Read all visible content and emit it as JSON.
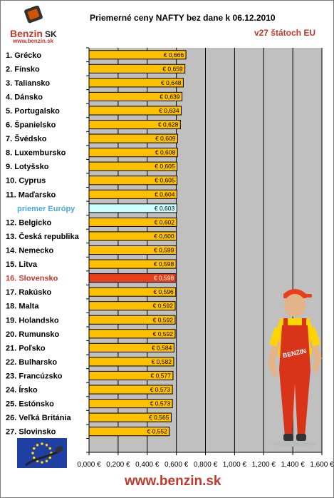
{
  "header": {
    "title": "Priemerné ceny NAFTY bez dane k 06.12.2010",
    "subtitle": "v27 štátoch EU",
    "logo_text": "Benzin",
    "logo_suffix": "SK",
    "logo_url": "www.benzin.sk"
  },
  "footer": {
    "url": "www.benzin.sk"
  },
  "colors": {
    "bar": "#ffc000",
    "average_bar": "#ccffff",
    "highlight_bar": "#e8401a",
    "label": "#000000",
    "average_label": "#4da8d8",
    "highlight_label": "#c0392b",
    "plot_bg": "#c0c0c0"
  },
  "chart_data": {
    "type": "bar",
    "orientation": "horizontal",
    "categories": [
      "1. Grécko",
      "2. Fínsko",
      "3. Taliansko",
      "4. Dánsko",
      "5. Portugalsko",
      "6. Španielsko",
      "7. Švédsko",
      "8. Luxembursko",
      "9. Lotyšsko",
      "10. Cyprus",
      "11. Maďarsko",
      "priemer Európy",
      "12. Belgicko",
      "13. Česká republika",
      "14. Nemecko",
      "15. Litva",
      "16. Slovensko",
      "17. Rakúsko",
      "18. Malta",
      "19. Holandsko",
      "20. Rumunsko",
      "21. Poľsko",
      "22. Bulharsko",
      "23. Francúzsko",
      "24. Írsko",
      "25. Estónsko",
      "26. Veľká Británia",
      "27. Slovinsko"
    ],
    "values": [
      0.666,
      0.659,
      0.648,
      0.639,
      0.634,
      0.628,
      0.609,
      0.608,
      0.605,
      0.605,
      0.604,
      0.603,
      0.602,
      0.6,
      0.599,
      0.598,
      0.598,
      0.596,
      0.592,
      0.592,
      0.592,
      0.584,
      0.582,
      0.577,
      0.573,
      0.573,
      0.565,
      0.552
    ],
    "value_labels": [
      "€ 0,666",
      "€ 0,659",
      "€ 0,648",
      "€ 0,639",
      "€ 0,634",
      "€ 0,628",
      "€ 0,609",
      "€ 0,608",
      "€ 0,605",
      "€ 0,605",
      "€ 0,604",
      "€ 0,603",
      "€ 0,602",
      "€ 0,600",
      "€ 0,599",
      "€ 0,598",
      "€ 0,598",
      "€ 0,596",
      "€ 0,592",
      "€ 0,592",
      "€ 0,592",
      "€ 0,584",
      "€ 0,582",
      "€ 0,577",
      "€ 0,573",
      "€ 0,573",
      "€ 0,565",
      "€ 0,552"
    ],
    "average_index": 11,
    "highlight_index": 16,
    "xlim": [
      0,
      1.6
    ],
    "xticks": [
      0,
      0.2,
      0.4,
      0.6,
      0.8,
      1.0,
      1.2,
      1.4,
      1.6
    ],
    "xtick_labels": [
      "0,000 €",
      "0,200 €",
      "0,400 €",
      "0,600 €",
      "0,800 €",
      "1,000 €",
      "1,200 €",
      "1,400 €",
      "1,600 €"
    ],
    "grid": true,
    "legend": "none"
  }
}
